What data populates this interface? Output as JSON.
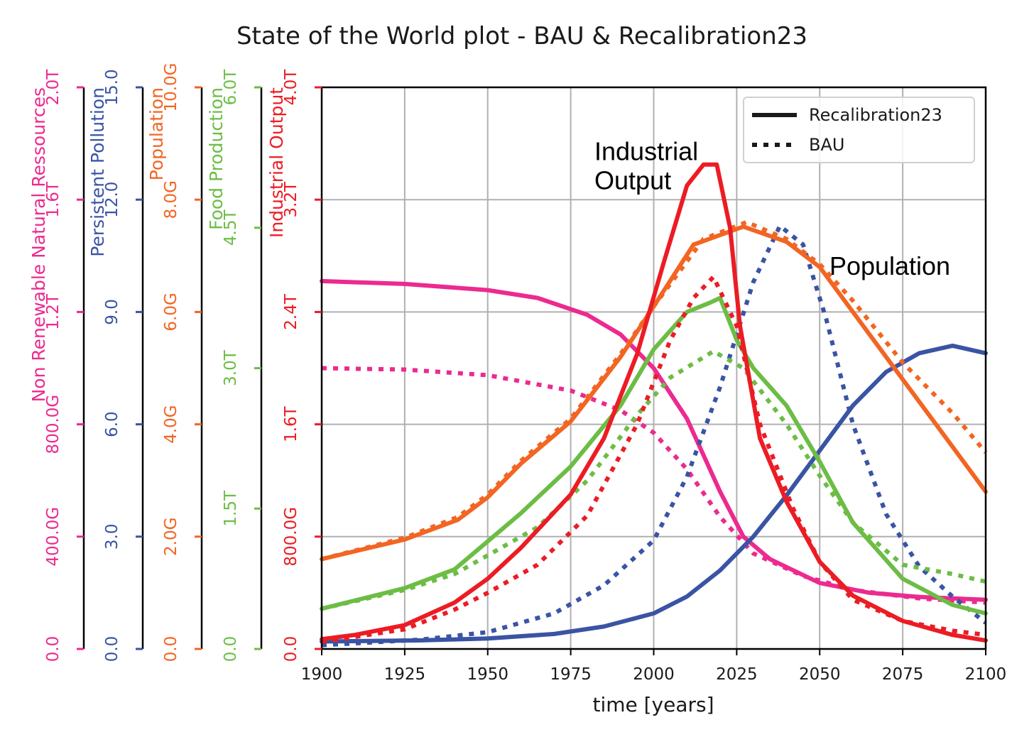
{
  "chart_data": {
    "type": "line",
    "title": "State of the World plot - BAU & Recalibration23",
    "xlabel": "time [years]",
    "xlim": [
      1900,
      2100
    ],
    "xticks": [
      1900,
      1925,
      1950,
      1975,
      2000,
      2025,
      2050,
      2075,
      2100
    ],
    "xtick_labels": [
      "1900",
      "1925",
      "1950",
      "1975",
      "2000",
      "2025",
      "2050",
      "2075",
      "2100"
    ],
    "grid": true,
    "legend": {
      "position": "top-right",
      "entries": [
        {
          "label": "Recalibration23",
          "style": "solid"
        },
        {
          "label": "BAU",
          "style": "dotted"
        }
      ]
    },
    "annotations": [
      {
        "lines": [
          "Industrial",
          "Output"
        ],
        "x": 1983,
        "y_frac": 0.85
      },
      {
        "text": "Population",
        "x": 2054,
        "y_frac": 0.66
      }
    ],
    "axes": [
      {
        "id": "nrr",
        "label": "Non Renewable Natural Ressources",
        "color": "#ec2a8f",
        "ylim": [
          0,
          2000
        ],
        "ticks": [
          0,
          400,
          800,
          1200,
          1600,
          2000
        ],
        "tick_labels": [
          "0.0",
          "400.0G",
          "800.0G",
          "1.2T",
          "1.6T",
          "2.0T"
        ]
      },
      {
        "id": "pol",
        "label": "Persistent Pollution",
        "color": "#3a54a4",
        "ylim": [
          0,
          15
        ],
        "ticks": [
          0,
          3,
          6,
          9,
          12,
          15
        ],
        "tick_labels": [
          "0.0",
          "3.0",
          "6.0",
          "9.0",
          "12.0",
          "15.0"
        ]
      },
      {
        "id": "pop",
        "label": "Population",
        "color": "#f26522",
        "ylim": [
          0,
          10
        ],
        "ticks": [
          0,
          2,
          4,
          6,
          8,
          10
        ],
        "tick_labels": [
          "0.0",
          "2.0G",
          "4.0G",
          "6.0G",
          "8.0G",
          "10.0G"
        ]
      },
      {
        "id": "food",
        "label": "Food Production",
        "color": "#6cbd45",
        "ylim": [
          0,
          6
        ],
        "ticks": [
          0,
          1.5,
          3,
          4.5,
          6
        ],
        "tick_labels": [
          "0.0",
          "1.5T",
          "3.0T",
          "4.5T",
          "6.0T"
        ]
      },
      {
        "id": "io",
        "label": "Industrial Output",
        "color": "#ec1c24",
        "ylim": [
          0,
          4
        ],
        "ticks": [
          0,
          0.8,
          1.6,
          2.4,
          3.2,
          4.0
        ],
        "tick_labels": [
          "0.0",
          "800.0G",
          "1.6T",
          "2.4T",
          "3.2T",
          "4.0T"
        ]
      }
    ],
    "series": [
      {
        "name": "Non Renewable Natural Ressources (Recalibration23)",
        "axis": "nrr",
        "style": "solid",
        "points": [
          [
            1900,
            1310
          ],
          [
            1925,
            1300
          ],
          [
            1950,
            1278
          ],
          [
            1965,
            1250
          ],
          [
            1980,
            1190
          ],
          [
            1990,
            1120
          ],
          [
            2000,
            1000
          ],
          [
            2010,
            820
          ],
          [
            2020,
            560
          ],
          [
            2027,
            400
          ],
          [
            2035,
            320
          ],
          [
            2050,
            235
          ],
          [
            2065,
            200
          ],
          [
            2080,
            185
          ],
          [
            2100,
            175
          ]
        ]
      },
      {
        "name": "Non Renewable Natural Ressources (BAU)",
        "axis": "nrr",
        "style": "dotted",
        "points": [
          [
            1900,
            1000
          ],
          [
            1925,
            995
          ],
          [
            1950,
            975
          ],
          [
            1975,
            920
          ],
          [
            1990,
            850
          ],
          [
            2000,
            770
          ],
          [
            2010,
            640
          ],
          [
            2020,
            470
          ],
          [
            2030,
            340
          ],
          [
            2045,
            260
          ],
          [
            2060,
            210
          ],
          [
            2080,
            180
          ],
          [
            2100,
            165
          ]
        ]
      },
      {
        "name": "Persistent Pollution (Recalibration23)",
        "axis": "pol",
        "style": "solid",
        "points": [
          [
            1900,
            0.2
          ],
          [
            1930,
            0.23
          ],
          [
            1950,
            0.28
          ],
          [
            1970,
            0.4
          ],
          [
            1985,
            0.6
          ],
          [
            2000,
            0.95
          ],
          [
            2010,
            1.4
          ],
          [
            2020,
            2.1
          ],
          [
            2030,
            3.0
          ],
          [
            2040,
            4.1
          ],
          [
            2050,
            5.3
          ],
          [
            2060,
            6.5
          ],
          [
            2070,
            7.4
          ],
          [
            2080,
            7.9
          ],
          [
            2090,
            8.1
          ],
          [
            2100,
            7.9
          ]
        ]
      },
      {
        "name": "Persistent Pollution (BAU)",
        "axis": "pol",
        "style": "dotted",
        "points": [
          [
            1900,
            0.1
          ],
          [
            1930,
            0.25
          ],
          [
            1950,
            0.45
          ],
          [
            1970,
            0.95
          ],
          [
            1985,
            1.7
          ],
          [
            2000,
            2.9
          ],
          [
            2010,
            4.6
          ],
          [
            2020,
            7.0
          ],
          [
            2030,
            9.8
          ],
          [
            2038,
            11.3
          ],
          [
            2045,
            10.8
          ],
          [
            2052,
            8.8
          ],
          [
            2060,
            6.0
          ],
          [
            2070,
            3.6
          ],
          [
            2080,
            2.2
          ],
          [
            2090,
            1.4
          ],
          [
            2100,
            0.7
          ]
        ]
      },
      {
        "name": "Population (Recalibration23)",
        "axis": "pop",
        "style": "solid",
        "points": [
          [
            1900,
            1.6
          ],
          [
            1925,
            1.95
          ],
          [
            1941,
            2.3
          ],
          [
            1950,
            2.7
          ],
          [
            1960,
            3.3
          ],
          [
            1975,
            4.05
          ],
          [
            1990,
            5.2
          ],
          [
            2000,
            6.1
          ],
          [
            2012,
            7.2
          ],
          [
            2027,
            7.52
          ],
          [
            2040,
            7.25
          ],
          [
            2050,
            6.8
          ],
          [
            2060,
            6.0
          ],
          [
            2075,
            4.8
          ],
          [
            2090,
            3.6
          ],
          [
            2100,
            2.8
          ]
        ]
      },
      {
        "name": "Population (BAU)",
        "axis": "pop",
        "style": "dotted",
        "points": [
          [
            1900,
            1.6
          ],
          [
            1925,
            1.98
          ],
          [
            1941,
            2.35
          ],
          [
            1950,
            2.75
          ],
          [
            1960,
            3.35
          ],
          [
            1975,
            4.1
          ],
          [
            1990,
            5.25
          ],
          [
            2000,
            6.1
          ],
          [
            2015,
            7.3
          ],
          [
            2028,
            7.6
          ],
          [
            2040,
            7.3
          ],
          [
            2050,
            6.85
          ],
          [
            2060,
            6.2
          ],
          [
            2075,
            5.1
          ],
          [
            2090,
            4.2
          ],
          [
            2100,
            3.5
          ]
        ]
      },
      {
        "name": "Food Production (Recalibration23)",
        "axis": "food",
        "style": "solid",
        "points": [
          [
            1900,
            0.43
          ],
          [
            1925,
            0.65
          ],
          [
            1940,
            0.85
          ],
          [
            1950,
            1.15
          ],
          [
            1960,
            1.45
          ],
          [
            1975,
            1.95
          ],
          [
            1990,
            2.6
          ],
          [
            2000,
            3.2
          ],
          [
            2010,
            3.6
          ],
          [
            2017,
            3.7
          ],
          [
            2020,
            3.75
          ],
          [
            2025,
            3.3
          ],
          [
            2030,
            3.0
          ],
          [
            2040,
            2.6
          ],
          [
            2050,
            2.0
          ],
          [
            2060,
            1.35
          ],
          [
            2075,
            0.75
          ],
          [
            2090,
            0.47
          ],
          [
            2100,
            0.38
          ]
        ]
      },
      {
        "name": "Food Production (BAU)",
        "axis": "food",
        "style": "dotted",
        "points": [
          [
            1900,
            0.43
          ],
          [
            1925,
            0.63
          ],
          [
            1940,
            0.8
          ],
          [
            1950,
            1.0
          ],
          [
            1965,
            1.3
          ],
          [
            1980,
            1.8
          ],
          [
            1995,
            2.5
          ],
          [
            2005,
            2.9
          ],
          [
            2018,
            3.18
          ],
          [
            2027,
            3.0
          ],
          [
            2040,
            2.4
          ],
          [
            2050,
            1.85
          ],
          [
            2060,
            1.35
          ],
          [
            2075,
            0.9
          ],
          [
            2090,
            0.8
          ],
          [
            2100,
            0.72
          ]
        ]
      },
      {
        "name": "Industrial Output (Recalibration23)",
        "axis": "io",
        "style": "solid",
        "points": [
          [
            1900,
            0.07
          ],
          [
            1910,
            0.1
          ],
          [
            1925,
            0.17
          ],
          [
            1940,
            0.33
          ],
          [
            1950,
            0.5
          ],
          [
            1960,
            0.72
          ],
          [
            1975,
            1.1
          ],
          [
            1985,
            1.5
          ],
          [
            1995,
            2.1
          ],
          [
            2003,
            2.75
          ],
          [
            2010,
            3.3
          ],
          [
            2015,
            3.45
          ],
          [
            2019,
            3.45
          ],
          [
            2023,
            3.0
          ],
          [
            2026,
            2.3
          ],
          [
            2032,
            1.5
          ],
          [
            2040,
            1.05
          ],
          [
            2050,
            0.62
          ],
          [
            2060,
            0.38
          ],
          [
            2075,
            0.2
          ],
          [
            2090,
            0.1
          ],
          [
            2100,
            0.06
          ]
        ]
      },
      {
        "name": "Industrial Output (BAU)",
        "axis": "io",
        "style": "dotted",
        "points": [
          [
            1900,
            0.05
          ],
          [
            1925,
            0.14
          ],
          [
            1940,
            0.28
          ],
          [
            1950,
            0.4
          ],
          [
            1965,
            0.6
          ],
          [
            1980,
            0.95
          ],
          [
            1995,
            1.6
          ],
          [
            2005,
            2.2
          ],
          [
            2012,
            2.5
          ],
          [
            2018,
            2.65
          ],
          [
            2025,
            2.3
          ],
          [
            2032,
            1.6
          ],
          [
            2042,
            1.0
          ],
          [
            2050,
            0.62
          ],
          [
            2060,
            0.35
          ],
          [
            2075,
            0.2
          ],
          [
            2090,
            0.13
          ],
          [
            2100,
            0.1
          ]
        ]
      }
    ]
  }
}
